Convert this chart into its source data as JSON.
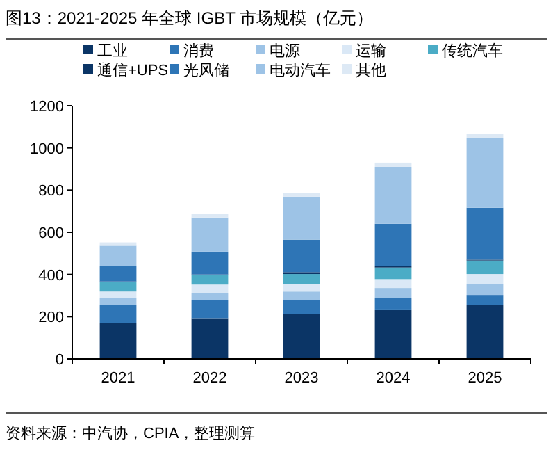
{
  "chart_data": {
    "type": "bar",
    "stacked": true,
    "title": "图13：2021-2025 年全球 IGBT 市场规模（亿元）",
    "annotations": [
      "资料来源：中汽协，CPIA，整理测算"
    ],
    "categories": [
      "2021",
      "2022",
      "2023",
      "2024",
      "2025"
    ],
    "ylim": [
      0,
      1200
    ],
    "yticks": [
      0,
      200,
      400,
      600,
      800,
      1000,
      1200
    ],
    "legend": "top",
    "grid": false,
    "series": [
      {
        "name": "工业",
        "color": "#0b3566",
        "values": [
          169,
          193,
          211,
          231,
          255
        ]
      },
      {
        "name": "消费",
        "color": "#2e75b6",
        "values": [
          88,
          84,
          66,
          59,
          48
        ]
      },
      {
        "name": "电源",
        "color": "#9dc3e6",
        "values": [
          31,
          35,
          42,
          46,
          53
        ]
      },
      {
        "name": "运输",
        "color": "#dae8f6",
        "values": [
          31,
          40,
          37,
          42,
          46
        ]
      },
      {
        "name": "传统汽车",
        "color": "#4bacc6",
        "values": [
          44,
          44,
          46,
          55,
          64
        ]
      },
      {
        "name": "通信+UPS",
        "color": "#0b3566",
        "values": [
          4,
          4,
          9,
          7,
          4
        ]
      },
      {
        "name": "光风储",
        "color": "#2e75b6",
        "values": [
          73,
          108,
          154,
          200,
          246
        ]
      },
      {
        "name": "电动汽车",
        "color": "#9dc3e6",
        "values": [
          96,
          162,
          204,
          270,
          332
        ]
      },
      {
        "name": "其他",
        "color": "#dde9f5",
        "values": [
          16,
          18,
          18,
          20,
          20
        ]
      }
    ]
  }
}
